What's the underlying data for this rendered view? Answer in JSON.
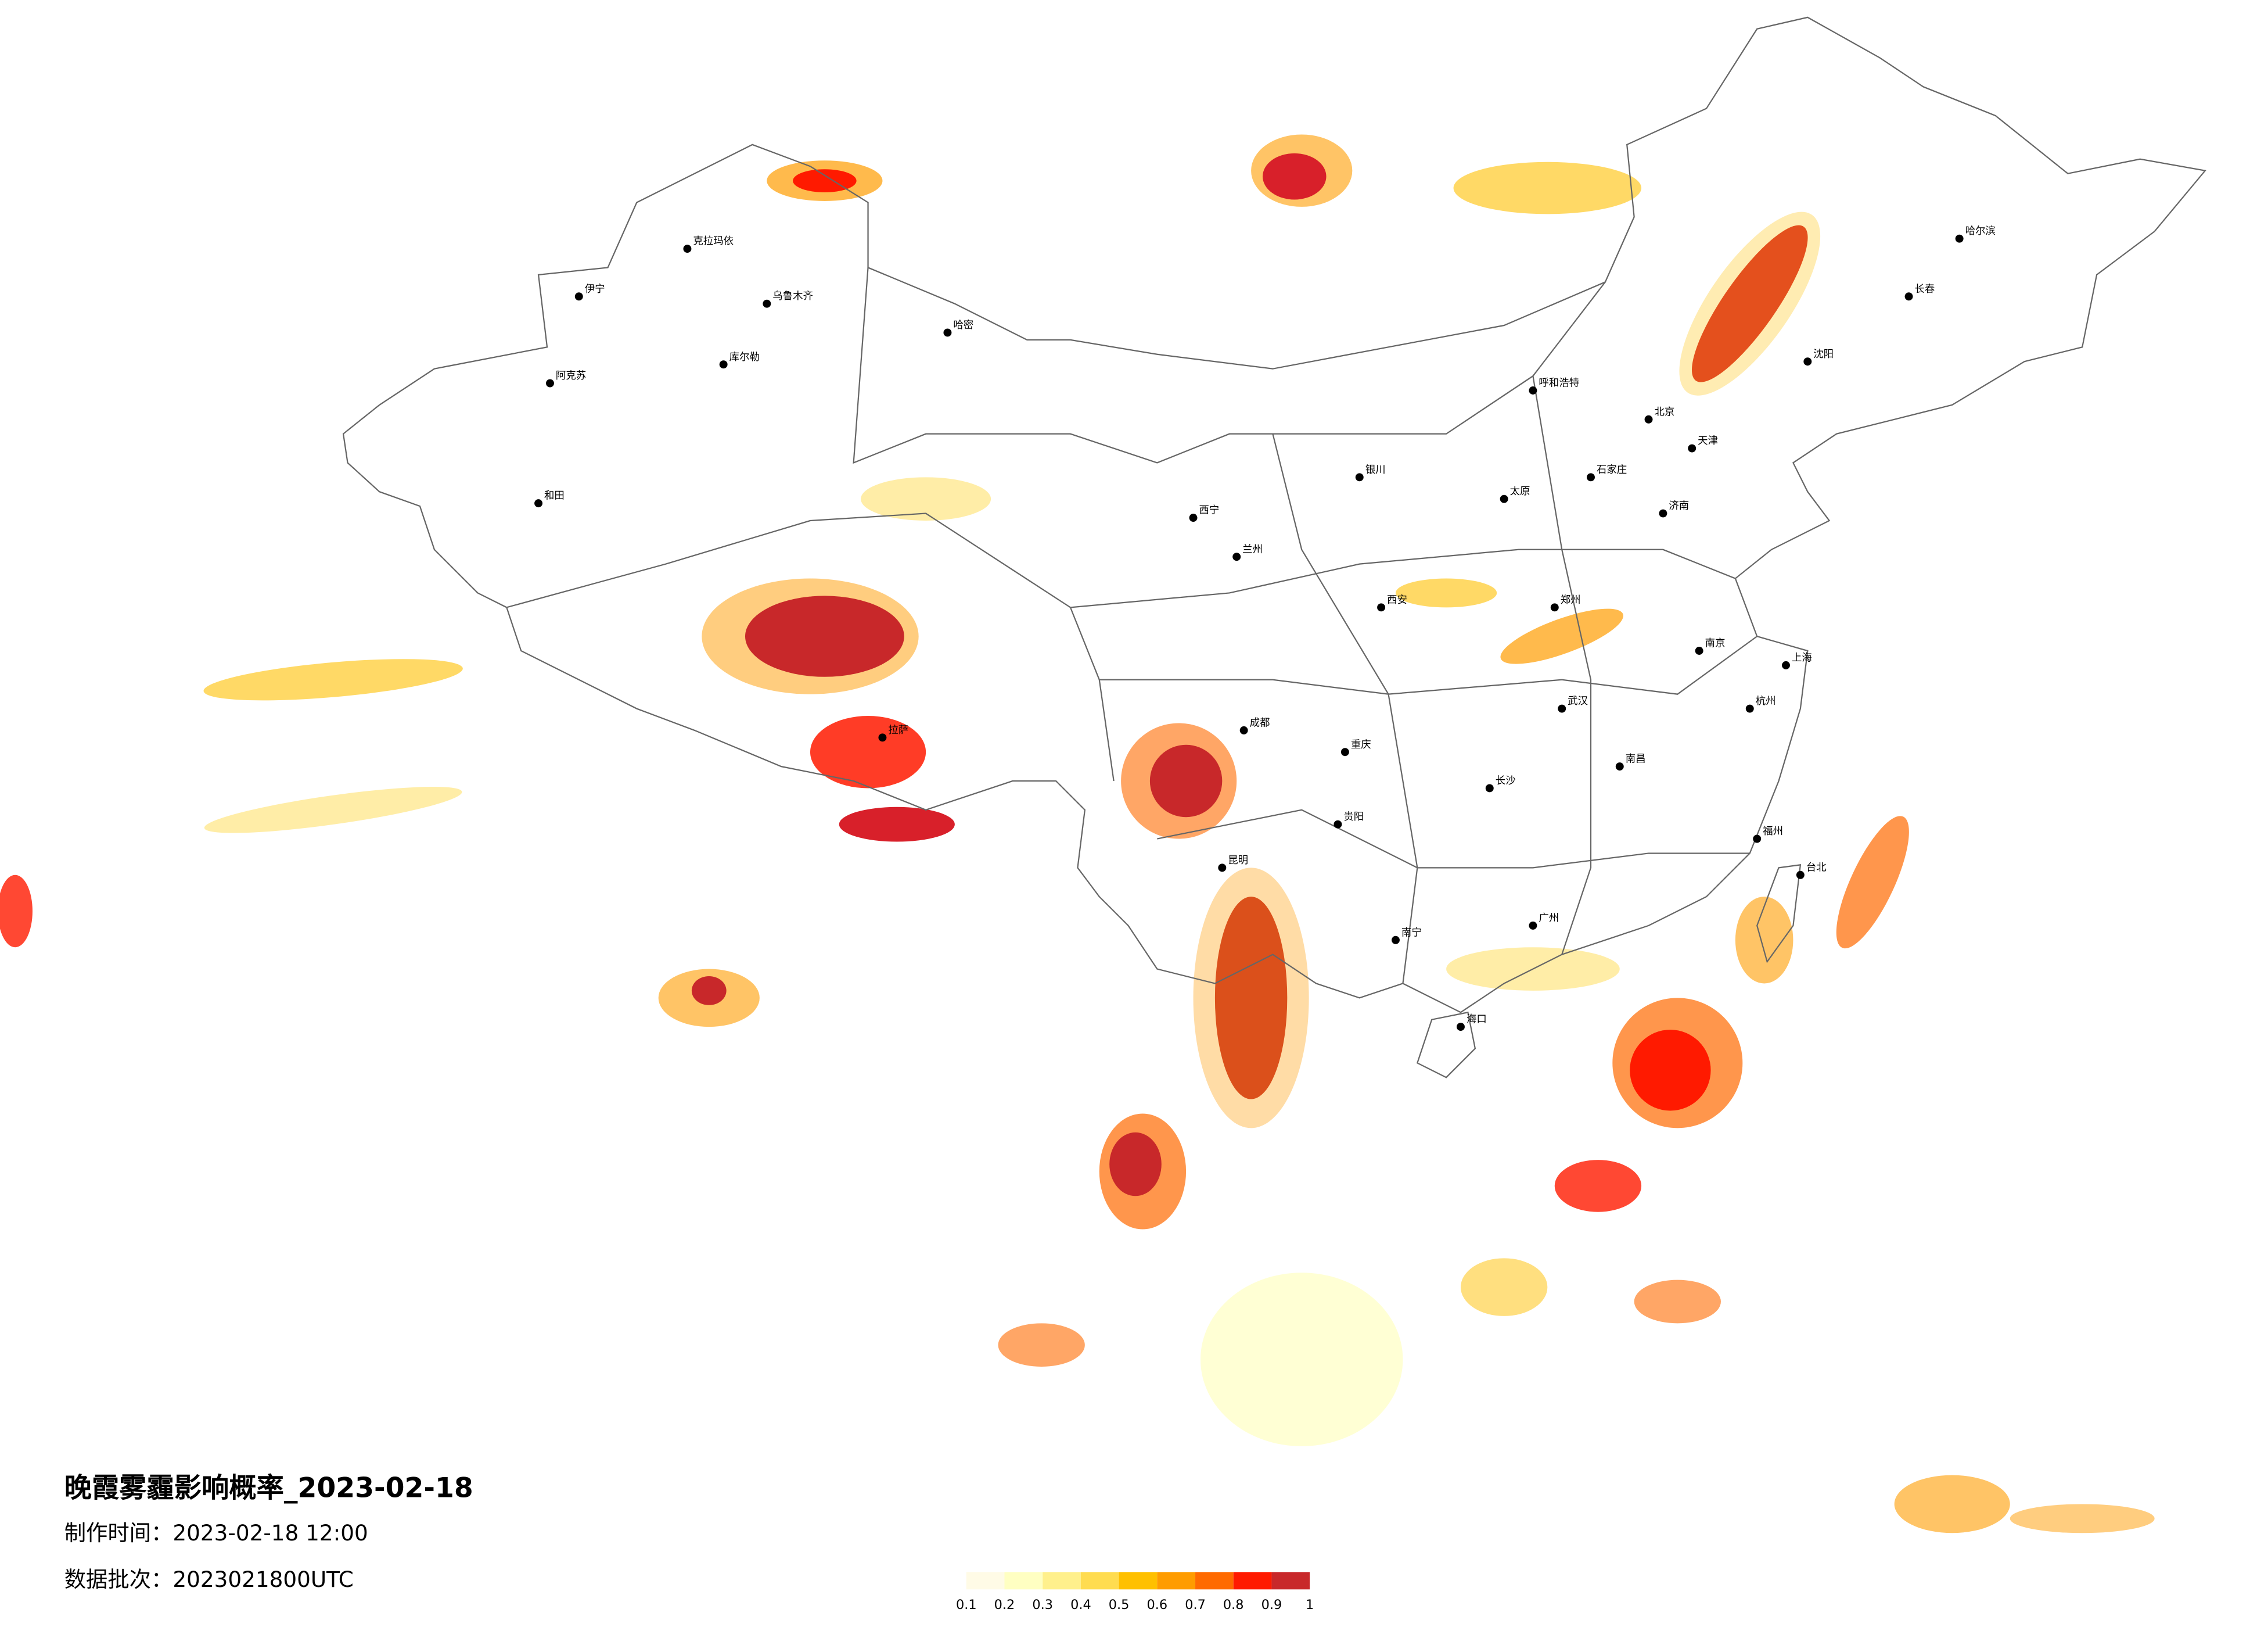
{
  "header": {
    "title": "晚霞雾霾影响概率_2023-02-18",
    "made_time": "制作时间：2023-02-18 12:00",
    "batch": "数据批次：2023021800UTC"
  },
  "legend": {
    "ticks": [
      0.1,
      0.2,
      0.3,
      0.4,
      0.5,
      0.6,
      0.7,
      0.8,
      0.9,
      1
    ],
    "colors": [
      "#fffbe6",
      "#ffffc2",
      "#fff08c",
      "#ffdc50",
      "#ffc000",
      "#ff9c00",
      "#ff6a00",
      "#ff1a00",
      "#c8282a"
    ]
  },
  "cities": [
    "乌鲁木齐",
    "克拉玛依",
    "伊宁",
    "库尔勒",
    "阿克苏",
    "和田",
    "哈密",
    "拉萨",
    "兰州",
    "西宁",
    "西安",
    "成都",
    "重庆",
    "昆明",
    "贵阳",
    "南宁",
    "广州",
    "长沙",
    "武汉",
    "南京",
    "上海",
    "杭州",
    "福州",
    "南昌",
    "郑州",
    "济南",
    "北京",
    "天津",
    "石家庄",
    "太原",
    "呼和浩特",
    "沈阳",
    "长春",
    "哈尔滨",
    "银川",
    "台北",
    "海口"
  ]
}
